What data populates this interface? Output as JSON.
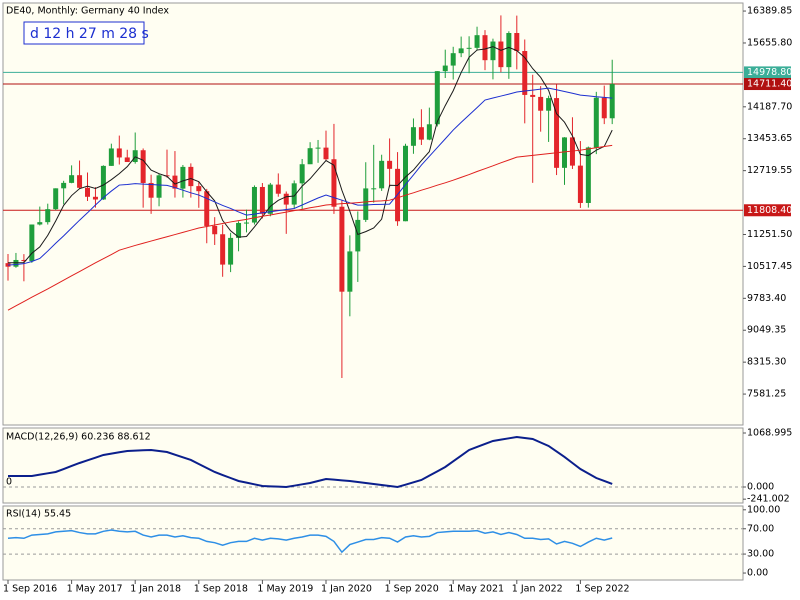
{
  "chart_data": [
    {
      "type": "candlestick",
      "title": "DE40, Monthly:  Germany 40 Index",
      "annotation": "d 12 h 27 m 28 s",
      "categories": [
        "1 Sep 2016",
        null,
        null,
        null,
        null,
        null,
        null,
        null,
        "1 May 2017",
        null,
        null,
        null,
        null,
        null,
        null,
        null,
        "1 Jan 2018",
        null,
        null,
        null,
        null,
        null,
        null,
        null,
        "1 Sep 2018",
        null,
        null,
        null,
        null,
        null,
        null,
        null,
        "1 May 2019",
        null,
        null,
        null,
        null,
        null,
        null,
        null,
        "1 Jan 2020",
        null,
        null,
        null,
        null,
        null,
        null,
        null,
        "1 Sep 2020",
        null,
        null,
        null,
        null,
        null,
        null,
        null,
        "1 May 2021",
        null,
        null,
        null,
        null,
        null,
        null,
        null,
        "1 Jan 2022",
        null,
        null,
        null,
        null,
        null,
        null,
        null,
        "1 Sep 2022",
        null,
        null,
        null,
        null
      ],
      "series": {
        "up_color": "#1f9e3c",
        "down_color": "#e3252b",
        "open": [
          10592,
          10511,
          10665,
          10640,
          11481,
          11535,
          11834,
          12313,
          12438,
          12615,
          12325,
          12118,
          12056,
          12829,
          13230,
          13023,
          12918,
          13189,
          12436,
          12097,
          12612,
          12605,
          12306,
          12806,
          12364,
          12247,
          11447,
          11257,
          10559,
          11173,
          11516,
          11526,
          12344,
          11727,
          12399,
          12189,
          11939,
          12428,
          12867,
          13236,
          13249,
          12982,
          11890,
          9936,
          10862,
          11587,
          12311,
          12313,
          12945,
          12761,
          11556,
          13291,
          13719,
          13433,
          13786,
          15008,
          15136,
          15421,
          15531,
          15544,
          15835,
          15260,
          15689,
          15100,
          15885,
          15471,
          14461,
          14415,
          14098,
          14388,
          12784,
          13484,
          12835,
          11976,
          13253,
          14397,
          13924
        ],
        "high": [
          10802,
          10827,
          10800,
          11482,
          11893,
          11960,
          12313,
          12486,
          12841,
          12952,
          12676,
          12340,
          12842,
          13340,
          13526,
          13200,
          13597,
          13230,
          12626,
          12650,
          13204,
          13170,
          12850,
          12887,
          12460,
          12300,
          11650,
          11475,
          11290,
          11555,
          11823,
          12380,
          12435,
          12437,
          12656,
          12240,
          12494,
          12988,
          13374,
          13425,
          13640,
          13795,
          12050,
          11232,
          11782,
          12913,
          13313,
          13086,
          13460,
          13146,
          13339,
          13920,
          14131,
          14169,
          15008,
          15502,
          15568,
          15803,
          15810,
          16030,
          15952,
          15755,
          16290,
          15925,
          16285,
          15736,
          14925,
          14664,
          14443,
          14705,
          13490,
          13947,
          13400,
          13273,
          14532,
          14675,
          15270
        ],
        "low": [
          10189,
          10486,
          10175,
          10600,
          11460,
          11480,
          11810,
          11945,
          12430,
          12300,
          12022,
          11869,
          12046,
          12830,
          12860,
          12930,
          12880,
          11868,
          11726,
          11900,
          12560,
          12100,
          12100,
          12100,
          11865,
          11050,
          11010,
          10279,
          10386,
          10865,
          11300,
          11480,
          11620,
          11670,
          12120,
          11266,
          11860,
          11830,
          12870,
          12900,
          12949,
          11725,
          7950,
          9370,
          10160,
          11538,
          11985,
          12253,
          12340,
          11450,
          11555,
          13107,
          13310,
          13420,
          13735,
          14850,
          14816,
          15330,
          14960,
          15480,
          15030,
          14819,
          14980,
          14831,
          15048,
          13807,
          12439,
          13616,
          13380,
          12618,
          12391,
          12758,
          11862,
          11869,
          13100,
          13790,
          13790
        ],
        "close": [
          10511,
          10665,
          10640,
          11481,
          11535,
          11834,
          12313,
          12438,
          12615,
          12325,
          12118,
          12056,
          12829,
          13230,
          13023,
          12918,
          13189,
          12436,
          12097,
          12612,
          12605,
          12306,
          12806,
          12364,
          12247,
          11447,
          11257,
          10559,
          11173,
          11516,
          11526,
          12344,
          11727,
          12399,
          12189,
          11939,
          12428,
          12867,
          13236,
          13249,
          12982,
          11890,
          9936,
          10862,
          11587,
          12311,
          12313,
          12945,
          12761,
          11556,
          13291,
          13719,
          13433,
          13786,
          15008,
          15136,
          15421,
          15531,
          15544,
          15835,
          15260,
          15689,
          15100,
          15885,
          15471,
          14461,
          14415,
          14098,
          14388,
          12784,
          13484,
          12835,
          11976,
          13253,
          14397,
          13924,
          14711
        ]
      },
      "overlays": [
        {
          "color": "#1a1a1a",
          "values": [
            10600,
            10600,
            10605,
            10820,
            10966,
            11231,
            11561,
            11920,
            12147,
            12305,
            12362,
            12310,
            12389,
            12512,
            12651,
            12811,
            13038,
            12959,
            12733,
            12650,
            12588,
            12411,
            12485,
            12539,
            12466,
            12234,
            12024,
            11575,
            11337,
            11190,
            11206,
            11424,
            11657,
            11898,
            12037,
            12120,
            12136,
            12364,
            12532,
            12744,
            12952,
            12845,
            12269,
            11784,
            11251,
            11317,
            11402,
            11604,
            12383,
            12377,
            12573,
            12734,
            12952,
            13157,
            13847,
            14216,
            14557,
            14976,
            15328,
            15493,
            15518,
            15572,
            15486,
            15554,
            15481,
            15321,
            15066,
            14866,
            14567,
            14029,
            13834,
            13518,
            13093,
            13066,
            13189,
            13277,
            13652
          ]
        },
        {
          "color": "#1c2fd0",
          "values": [
            10548,
            10560,
            10580,
            10630,
            10700,
            10870,
            11050,
            11220,
            11400,
            11580,
            11750,
            11930,
            12100,
            12250,
            12388,
            12400,
            12420,
            12410,
            12400,
            12390,
            12380,
            12330,
            12270,
            12210,
            12158,
            12080,
            12000,
            11920,
            11850,
            11770,
            11697,
            11720,
            11750,
            11775,
            11800,
            11825,
            11850,
            11930,
            12010,
            12090,
            12158,
            12100,
            12040,
            11980,
            11927,
            11930,
            11940,
            11945,
            11950,
            12170,
            12400,
            12620,
            12848,
            13050,
            13250,
            13450,
            13653,
            13830,
            14000,
            14170,
            14343,
            14390,
            14435,
            14480,
            14527,
            14550,
            14570,
            14595,
            14618,
            14580,
            14540,
            14500,
            14457,
            14440,
            14420,
            14405,
            14388
          ]
        },
        {
          "color": "#e0201e",
          "values": [
            9510,
            9610,
            9710,
            9810,
            9905,
            10000,
            10100,
            10200,
            10300,
            10400,
            10500,
            10600,
            10695,
            10790,
            10890,
            10945,
            11000,
            11050,
            11100,
            11150,
            11200,
            11250,
            11300,
            11350,
            11400,
            11435,
            11470,
            11505,
            11540,
            11570,
            11600,
            11635,
            11670,
            11700,
            11735,
            11765,
            11800,
            11830,
            11865,
            11895,
            11930,
            11945,
            11960,
            11970,
            11985,
            12000,
            12015,
            12025,
            12040,
            12095,
            12155,
            12210,
            12270,
            12325,
            12385,
            12440,
            12500,
            12565,
            12630,
            12700,
            12765,
            12830,
            12900,
            12965,
            13030,
            13050,
            13070,
            13090,
            13110,
            13130,
            13150,
            13170,
            13190,
            13220,
            13245,
            13275,
            13300
          ]
        }
      ],
      "levels": [
        {
          "value": 14978.8,
          "label": "14978.80",
          "color": "#3bae98"
        },
        {
          "value": 14711.4,
          "label": "14711.40",
          "color": "#b01010"
        },
        {
          "value": 11808.4,
          "label": "11808.40",
          "color": "#c81818"
        }
      ],
      "ylim": [
        6870,
        16575
      ],
      "yticks": [
        16389.85,
        {
          "value": 15655.8,
          "label": "15655.80"
        },
        {
          "value": 14187.7,
          "label": "14187.70"
        },
        13453.65,
        12719.55,
        {
          "value": 11251.5,
          "label": "11251.50"
        },
        10517.45,
        {
          "value": 9783.4,
          "label": "9783.40"
        },
        9049.35,
        {
          "value": 8315.3,
          "label": "8315.30"
        },
        7581.25
      ]
    },
    {
      "type": "line",
      "title": "MACD(12,26,9) 60.236 88.612",
      "color": "#0b1f8c",
      "values": [
        218,
        218,
        218,
        218,
        245,
        271,
        297,
        356,
        416,
        475,
        528,
        581,
        634,
        660,
        687,
        713,
        720,
        727,
        733,
        713,
        693,
        640,
        588,
        535,
        456,
        376,
        297,
        237,
        178,
        119,
        86,
        53,
        20,
        13,
        7,
        0,
        26,
        53,
        79,
        118,
        158,
        145,
        132,
        119,
        99,
        79,
        59,
        39,
        20,
        0,
        46,
        93,
        139,
        225,
        310,
        396,
        508,
        621,
        733,
        792,
        852,
        911,
        937,
        964,
        990,
        970,
        950,
        881,
        812,
        703,
        594,
        475,
        356,
        267,
        178,
        119,
        60
      ],
      "levels": [
        {
          "value": 0,
          "label": "0"
        }
      ],
      "ylim": [
        -317,
        1168
      ],
      "yticks": [
        1068.995,
        {
          "value": 0,
          "label": "0.000"
        },
        -241.002
      ]
    },
    {
      "type": "line",
      "title": "RSI(14) 55.45",
      "color": "#2e8fe6",
      "values": [
        55,
        56,
        55,
        60,
        61,
        62,
        65,
        66,
        67,
        64,
        62,
        62,
        66,
        68,
        66,
        65,
        66,
        60,
        57,
        60,
        60,
        57,
        59,
        56,
        55,
        50,
        48,
        44,
        48,
        50,
        50,
        55,
        52,
        55,
        54,
        52,
        55,
        57,
        60,
        60,
        58,
        50,
        33,
        45,
        49,
        53,
        53,
        56,
        55,
        49,
        57,
        59,
        57,
        58,
        64,
        65,
        66,
        66,
        66,
        67,
        63,
        65,
        61,
        64,
        61,
        55,
        55,
        53,
        54,
        46,
        50,
        47,
        42,
        49,
        55,
        52,
        55.45
      ],
      "levels": [
        70,
        30
      ],
      "ylim": [
        -11,
        106
      ],
      "yticks": [
        {
          "value": 100,
          "label": "100.00"
        },
        {
          "value": 70,
          "label": "70.00"
        },
        {
          "value": 30,
          "label": "30.00"
        },
        {
          "value": 0,
          "label": "0.00"
        }
      ]
    }
  ]
}
